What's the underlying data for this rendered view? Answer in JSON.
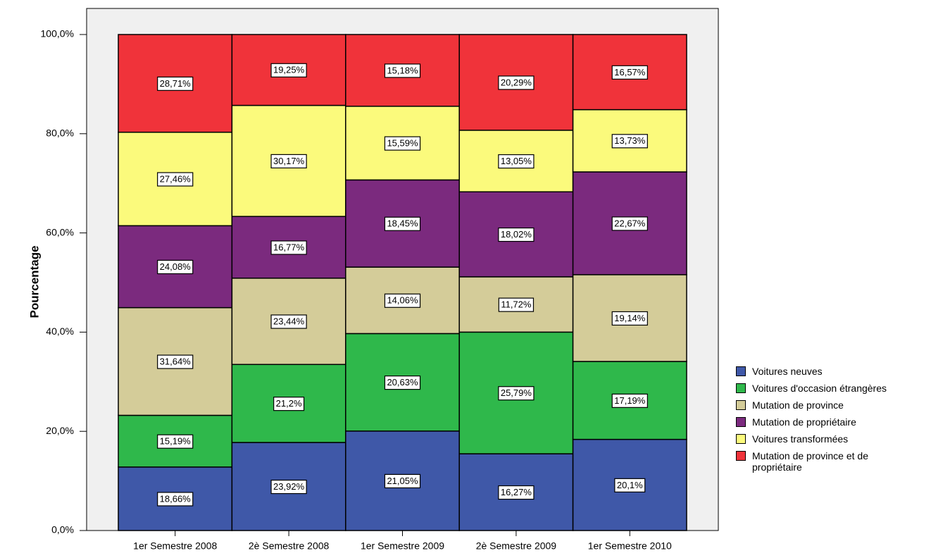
{
  "chart_data": {
    "type": "bar",
    "stacked": "percent",
    "ylabel": "Pourcentage",
    "categories": [
      "1er Semestre 2008",
      "2è Semestre 2008",
      "1er Semestre 2009",
      "2è Semestre 2009",
      "1er Semestre 2010"
    ],
    "series": [
      {
        "name": "Voitures neuves",
        "color": "#3f58a8",
        "values": [
          18.66,
          23.92,
          21.05,
          16.27,
          20.1
        ],
        "value_labels": [
          "18,66%",
          "23,92%",
          "21,05%",
          "16,27%",
          "20,1%"
        ]
      },
      {
        "name": "Voitures d'occasion étrangères",
        "color": "#2fb84b",
        "values": [
          15.19,
          21.2,
          20.63,
          25.79,
          17.19
        ],
        "value_labels": [
          "15,19%",
          "21,2%",
          "20,63%",
          "25,79%",
          "17,19%"
        ]
      },
      {
        "name": "Mutation de province",
        "color": "#d4cc99",
        "values": [
          31.64,
          23.44,
          14.06,
          11.72,
          19.14
        ],
        "value_labels": [
          "31,64%",
          "23,44%",
          "14,06%",
          "11,72%",
          "19,14%"
        ]
      },
      {
        "name": "Mutation de propriétaire",
        "color": "#7b2a7e",
        "values": [
          24.08,
          16.77,
          18.45,
          18.02,
          22.67
        ],
        "value_labels": [
          "24,08%",
          "16,77%",
          "18,45%",
          "18,02%",
          "22,67%"
        ]
      },
      {
        "name": "Voitures transformées",
        "color": "#fbfa7c",
        "values": [
          27.46,
          30.17,
          15.59,
          13.05,
          13.73
        ],
        "value_labels": [
          "27,46%",
          "30,17%",
          "15,59%",
          "13,05%",
          "13,73%"
        ]
      },
      {
        "name": "Mutation de province et de propriétaire",
        "color": "#f0333a",
        "values": [
          28.71,
          19.25,
          15.18,
          20.29,
          16.57
        ],
        "value_labels": [
          "28,71%",
          "19,25%",
          "15,18%",
          "20,29%",
          "16,57%"
        ]
      }
    ],
    "ylim": [
      0,
      100
    ],
    "yticks": [
      {
        "value": 0,
        "label": "0,0%"
      },
      {
        "value": 20,
        "label": "20,0%"
      },
      {
        "value": 40,
        "label": "40,0%"
      },
      {
        "value": 60,
        "label": "60,0%"
      },
      {
        "value": 80,
        "label": "80,0%"
      },
      {
        "value": 100,
        "label": "100,0%"
      }
    ],
    "legend": "right"
  }
}
